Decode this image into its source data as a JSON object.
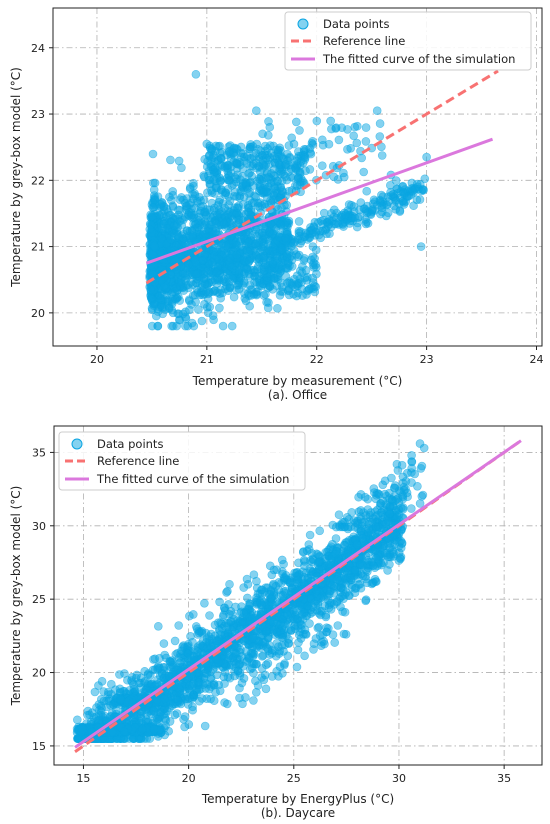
{
  "colors": {
    "points": "#0aa5e2",
    "reference": "#f87272",
    "fitted": "#db78dd"
  },
  "chart_data": [
    {
      "type": "scatter",
      "caption": "(a). Office",
      "xlabel": "Temperature by measurement (°C)",
      "ylabel": "Temperature by grey-box model (°C)",
      "xlim": [
        19.6,
        24.05
      ],
      "ylim": [
        19.5,
        24.6
      ],
      "xticks": [
        20,
        21,
        22,
        23,
        24
      ],
      "yticks": [
        20,
        21,
        22,
        23,
        24
      ],
      "grid": true,
      "legend_position": "top-right",
      "series": [
        {
          "name": "Data points",
          "kind": "scatter",
          "x_range": [
            20.45,
            23.05
          ],
          "y_range": [
            19.75,
            23.6
          ],
          "outliers": [
            [
              20.9,
              23.6
            ],
            [
              21.45,
              23.05
            ],
            [
              22.55,
              23.05
            ],
            [
              23.0,
              22.35
            ],
            [
              22.95,
              21.0
            ],
            [
              21.0,
              22.55
            ]
          ]
        },
        {
          "name": "Reference line",
          "kind": "line",
          "style": "dashed",
          "x": [
            20.45,
            23.65
          ],
          "y": [
            20.45,
            23.65
          ]
        },
        {
          "name": "The fitted curve of the simulation",
          "kind": "line",
          "style": "solid",
          "x": [
            20.45,
            23.6
          ],
          "y": [
            20.75,
            22.62
          ]
        }
      ]
    },
    {
      "type": "scatter",
      "caption": "(b). Daycare",
      "xlabel": "Temperature by EnergyPlus (°C)",
      "ylabel": "Temperature by grey-box model (°C)",
      "xlim": [
        13.6,
        36.8
      ],
      "ylim": [
        13.7,
        36.8
      ],
      "xticks": [
        15,
        20,
        25,
        30,
        35
      ],
      "yticks": [
        15,
        20,
        25,
        30,
        35
      ],
      "grid": true,
      "legend_position": "top-left",
      "series": [
        {
          "name": "Data points",
          "kind": "scatter",
          "x_range": [
            14.6,
            31.3
          ],
          "y_range": [
            15.2,
            35.7
          ],
          "outliers": [
            [
              31.0,
              35.6
            ],
            [
              31.2,
              35.3
            ],
            [
              29.9,
              34.2
            ],
            [
              30.4,
              33.6
            ],
            [
              30.6,
              34.8
            ]
          ]
        },
        {
          "name": "Reference line",
          "kind": "line",
          "style": "dashed",
          "x": [
            14.6,
            35.8
          ],
          "y": [
            14.6,
            35.8
          ]
        },
        {
          "name": "The fitted curve of the simulation",
          "kind": "line",
          "style": "solid",
          "x": [
            14.6,
            35.8
          ],
          "y": [
            14.9,
            35.8
          ]
        }
      ]
    }
  ]
}
